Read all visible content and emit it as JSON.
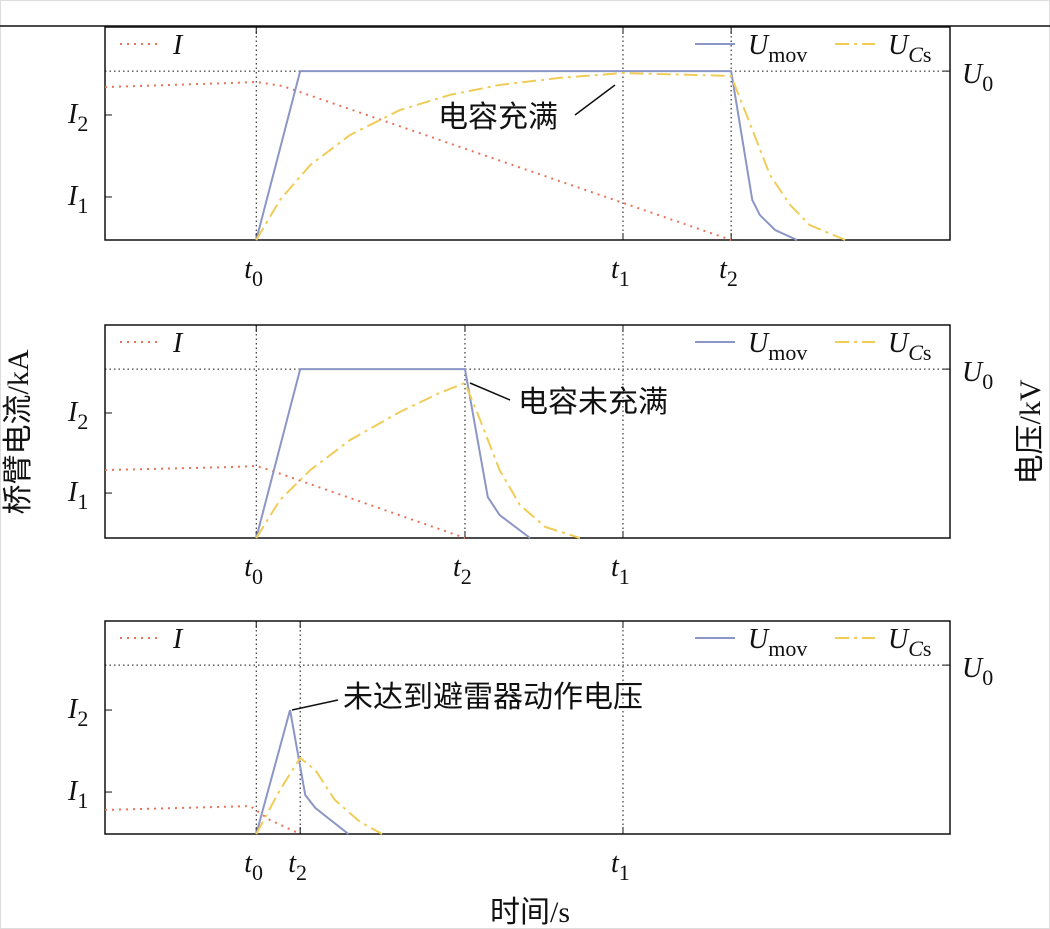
{
  "chart_data": [
    {
      "type": "line",
      "xlim": [
        0,
        100
      ],
      "ylim": [
        0,
        100
      ],
      "y2lim": [
        0,
        100
      ],
      "xticks": [
        {
          "value": 17.9,
          "label": "t0"
        },
        {
          "value": 61.3,
          "label": "t1"
        },
        {
          "value": 74.1,
          "label": "t2"
        }
      ],
      "yticks": [
        {
          "value": 20.2,
          "label": "I1"
        },
        {
          "value": 58.7,
          "label": "I2"
        }
      ],
      "y2ticks": [
        {
          "value": 79.3,
          "label": "U0"
        }
      ],
      "series": [
        {
          "name": "I",
          "color": "#e8735a",
          "linestyle": "dotted",
          "x": [
            0,
            14.8,
            17.9,
            21,
            74.1
          ],
          "values": [
            71.8,
            73.7,
            74.2,
            72.3,
            0
          ]
        },
        {
          "name": "Umov",
          "color": "#8c96c6",
          "linestyle": "solid",
          "axis": "y2",
          "x": [
            17.9,
            23.1,
            74.1,
            76.6,
            77.5,
            79.3,
            81.9
          ],
          "values": [
            0,
            79.3,
            79.3,
            18.8,
            11.7,
            4.7,
            0
          ]
        },
        {
          "name": "UCs",
          "color": "#f0cc58",
          "linestyle": "dashdot",
          "axis": "y2",
          "x": [
            17.9,
            20.7,
            24.3,
            29.0,
            34.9,
            40.8,
            46.7,
            53.8,
            61.3,
            74.1,
            75.7,
            78.7,
            81.1,
            83.4,
            87.6
          ],
          "values": [
            0,
            18.8,
            35.2,
            49.3,
            61.0,
            68.1,
            72.8,
            76.1,
            78.4,
            77.0,
            61.0,
            30.5,
            16.4,
            7.0,
            0
          ]
        }
      ],
      "annotation": "电容充满"
    },
    {
      "type": "line",
      "xlim": [
        0,
        100
      ],
      "ylim": [
        0,
        100
      ],
      "y2lim": [
        0,
        100
      ],
      "xticks": [
        {
          "value": 17.9,
          "label": "t0"
        },
        {
          "value": 42.6,
          "label": "t2"
        },
        {
          "value": 61.3,
          "label": "t1"
        }
      ],
      "yticks": [
        {
          "value": 21.1,
          "label": "I1"
        },
        {
          "value": 58.7,
          "label": "I2"
        }
      ],
      "y2ticks": [
        {
          "value": 79.3,
          "label": "U0"
        }
      ],
      "series": [
        {
          "name": "I",
          "color": "#e8735a",
          "linestyle": "dotted",
          "x": [
            0,
            14.8,
            17.9,
            19.5,
            42.6
          ],
          "values": [
            31.9,
            33.3,
            33.8,
            31.9,
            0
          ]
        },
        {
          "name": "Umov",
          "color": "#8c96c6",
          "linestyle": "solid",
          "axis": "y2",
          "x": [
            17.9,
            23.1,
            42.6,
            45.3,
            46.7,
            50.3
          ],
          "values": [
            0,
            79.3,
            79.3,
            19.2,
            10.8,
            0
          ]
        },
        {
          "name": "UCs",
          "color": "#f0cc58",
          "linestyle": "dashdot",
          "axis": "y2",
          "x": [
            17.9,
            20.7,
            24.3,
            29.0,
            34.9,
            39.6,
            42.6,
            44.4,
            46.7,
            49.1,
            52.1,
            56.2
          ],
          "values": [
            0,
            17.8,
            31.9,
            46.0,
            59.2,
            68.1,
            72.8,
            55.4,
            31.9,
            15.5,
            5.2,
            0
          ]
        }
      ],
      "annotation": "电容未充满"
    },
    {
      "type": "line",
      "xlim": [
        0,
        100
      ],
      "ylim": [
        0,
        100
      ],
      "y2lim": [
        0,
        100
      ],
      "xticks": [
        {
          "value": 17.9,
          "label": "t0"
        },
        {
          "value": 23.1,
          "label": "t2"
        },
        {
          "value": 61.3,
          "label": "t1"
        }
      ],
      "yticks": [
        {
          "value": 19.7,
          "label": "I1"
        },
        {
          "value": 58.2,
          "label": "I2"
        }
      ],
      "y2ticks": [
        {
          "value": 79.3,
          "label": "U0"
        }
      ],
      "series": [
        {
          "name": "I",
          "color": "#e8735a",
          "linestyle": "dotted",
          "x": [
            0,
            17.2,
            19.5,
            23.1
          ],
          "values": [
            11.3,
            13.1,
            6.6,
            0
          ]
        },
        {
          "name": "Umov",
          "color": "#8c96c6",
          "linestyle": "solid",
          "axis": "y2",
          "x": [
            17.9,
            21.9,
            23.7,
            24.9,
            28.8
          ],
          "values": [
            0,
            58.2,
            18.3,
            12.2,
            0
          ]
        },
        {
          "name": "UCs",
          "color": "#f0cc58",
          "linestyle": "dashdot",
          "axis": "y2",
          "x": [
            17.9,
            20.7,
            23.1,
            24.9,
            27.2,
            30.2,
            32.8
          ],
          "values": [
            0,
            20.7,
            35.7,
            30.0,
            16.0,
            5.6,
            0
          ]
        }
      ],
      "annotation": "未达到避雷器动作电压"
    }
  ],
  "ylabel": "桥臂电流/kA",
  "y2label": "电压/kV",
  "xlabel": "时间/s"
}
